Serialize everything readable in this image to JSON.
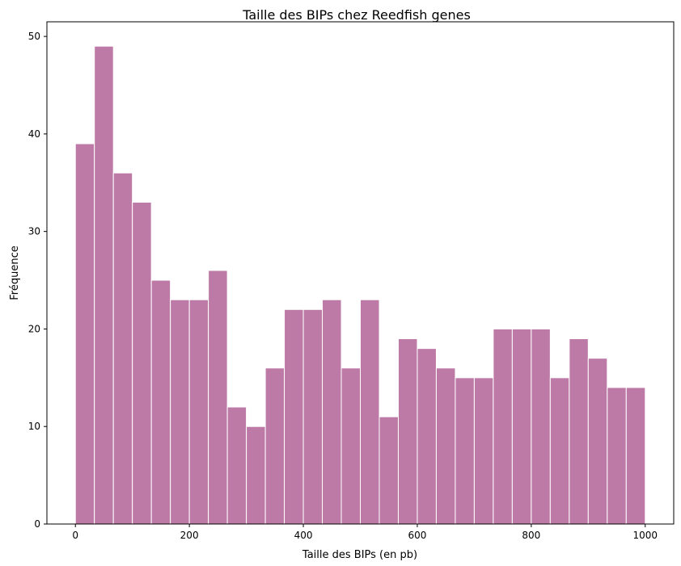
{
  "chart_data": {
    "type": "bar",
    "title": "Taille des BIPs chez Reedfish genes",
    "xlabel": "Taille des BIPs (en pb)",
    "ylabel": "Fréquence",
    "xlim": [
      -50,
      1050
    ],
    "ylim": [
      0,
      51.5
    ],
    "x_ticks": [
      0,
      200,
      400,
      600,
      800,
      1000
    ],
    "y_ticks": [
      0,
      10,
      20,
      30,
      40,
      50
    ],
    "bin_edges": [
      0,
      33.33,
      66.67,
      100,
      133.33,
      166.67,
      200,
      233.33,
      266.67,
      300,
      333.33,
      366.67,
      400,
      433.33,
      466.67,
      500,
      533.33,
      566.67,
      600,
      633.33,
      666.67,
      700,
      733.33,
      766.67,
      800,
      833.33,
      866.67,
      900,
      933.33,
      966.67,
      1000
    ],
    "values": [
      39,
      49,
      36,
      33,
      25,
      23,
      23,
      26,
      12,
      10,
      16,
      22,
      22,
      23,
      16,
      23,
      11,
      19,
      18,
      16,
      15,
      15,
      20,
      20,
      20,
      15,
      19,
      17,
      14,
      14
    ],
    "bar_color": "#bd7aa6",
    "edge_color": "#ffffff",
    "grid": false
  }
}
